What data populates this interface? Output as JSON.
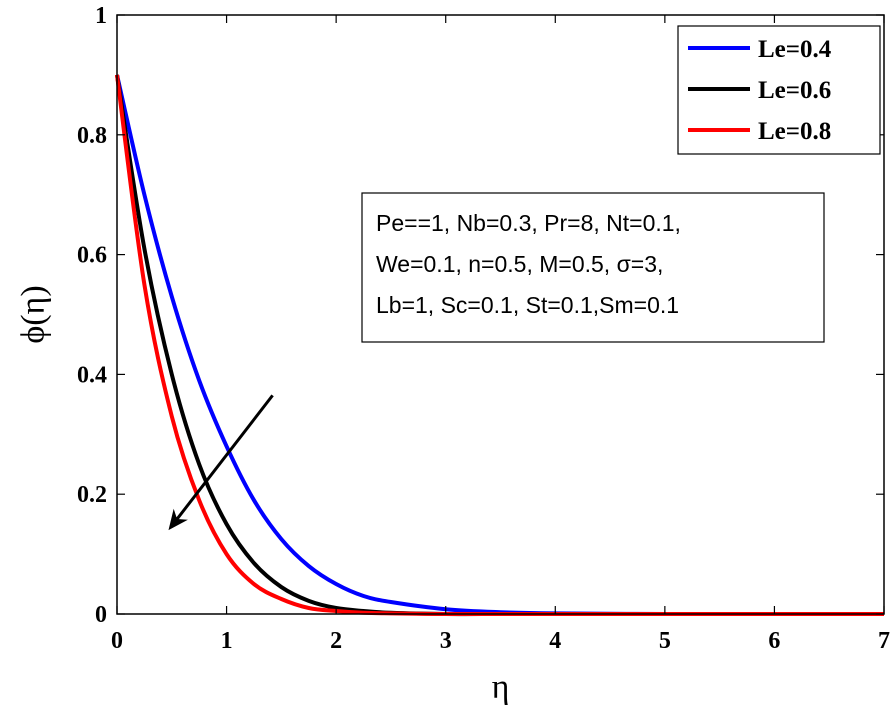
{
  "chart_data": {
    "type": "line",
    "xlabel": "η",
    "ylabel": "ϕ(η)",
    "xlim": [
      0,
      7
    ],
    "ylim": [
      0,
      1
    ],
    "xticks": [
      "0",
      "1",
      "2",
      "3",
      "4",
      "5",
      "6",
      "7"
    ],
    "yticks": [
      "0",
      "0.2",
      "0.4",
      "0.6",
      "0.8",
      "1"
    ],
    "grid": false,
    "legend_position": "top-right",
    "x": [
      0,
      0.25,
      0.5,
      0.75,
      1.0,
      1.25,
      1.5,
      1.75,
      2.0,
      2.25,
      2.5,
      3.0,
      3.5,
      4.0,
      5.0,
      6.0,
      7.0
    ],
    "series": [
      {
        "name": "Le=0.4",
        "color": "#0000ff",
        "values": [
          0.9,
          0.7,
          0.53,
          0.39,
          0.28,
          0.19,
          0.125,
          0.08,
          0.05,
          0.03,
          0.02,
          0.008,
          0.003,
          0.001,
          0.0,
          0.0,
          0.0
        ]
      },
      {
        "name": "Le=0.6",
        "color": "#000000",
        "values": [
          0.9,
          0.61,
          0.4,
          0.25,
          0.15,
          0.085,
          0.045,
          0.022,
          0.01,
          0.005,
          0.002,
          0.0,
          0.0,
          0.0,
          0.0,
          0.0,
          0.0
        ]
      },
      {
        "name": "Le=0.8",
        "color": "#ff0000",
        "values": [
          0.9,
          0.55,
          0.33,
          0.19,
          0.1,
          0.05,
          0.025,
          0.01,
          0.005,
          0.002,
          0.001,
          0.0,
          0.0,
          0.0,
          0.0,
          0.0,
          0.0
        ]
      }
    ],
    "annotation_lines": [
      "Pe==1, Nb=0.3, Pr=8, Nt=0.1,",
      "We=0.1, n=0.5, M=0.5, σ=3,",
      "Lb=1, Sc=0.1, St=0.1,Sm=0.1"
    ],
    "arrow": {
      "from": [
        1.42,
        0.365
      ],
      "to": [
        0.47,
        0.14
      ]
    }
  }
}
